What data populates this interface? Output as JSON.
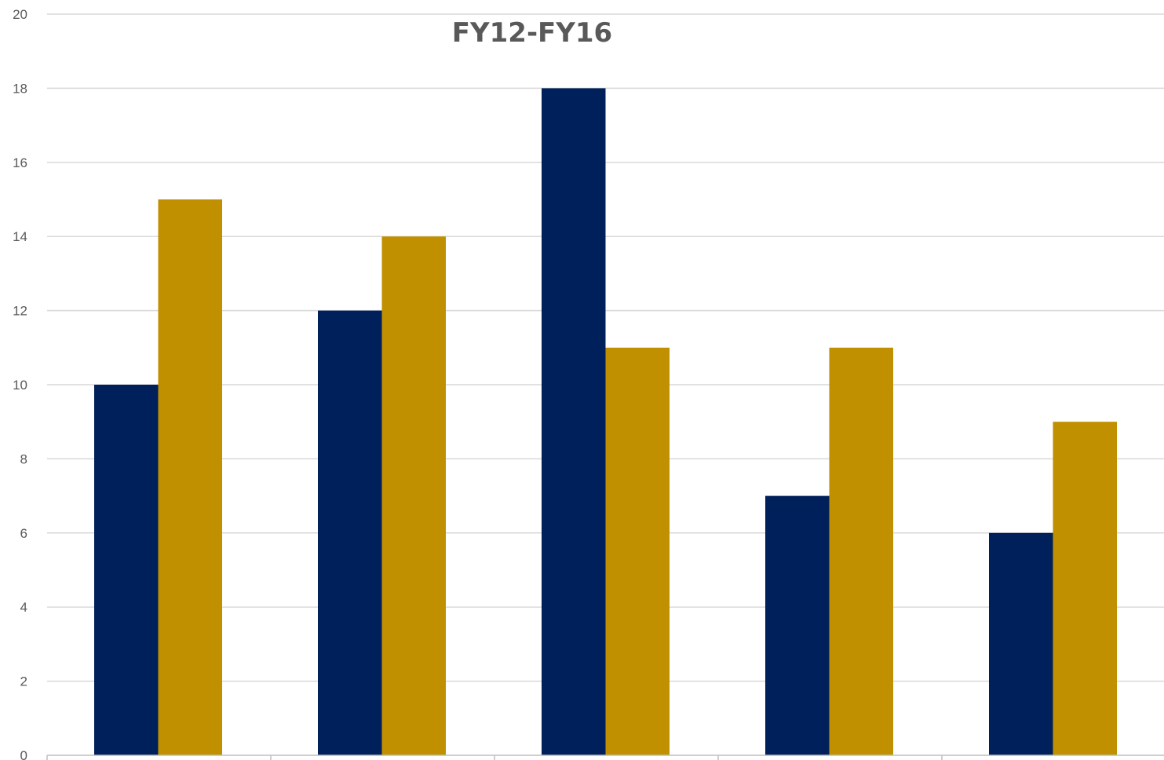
{
  "chart_data": {
    "type": "bar",
    "title": "FY12-FY16",
    "categories": [
      "",
      "",
      "",
      "",
      ""
    ],
    "series": [
      {
        "values": [
          10,
          12,
          18,
          7,
          6
        ],
        "color": "#00205B"
      },
      {
        "values": [
          15,
          14,
          11,
          11,
          9
        ],
        "color": "#C09000"
      }
    ],
    "ylim": [
      0,
      20
    ],
    "yticks": [
      0,
      2,
      4,
      6,
      8,
      10,
      12,
      14,
      16,
      18,
      20
    ],
    "grid": true,
    "legend": "none",
    "colors": {
      "gridline": "#D9D9D9",
      "axis": "#BFBFBF",
      "text": "#595959"
    }
  }
}
